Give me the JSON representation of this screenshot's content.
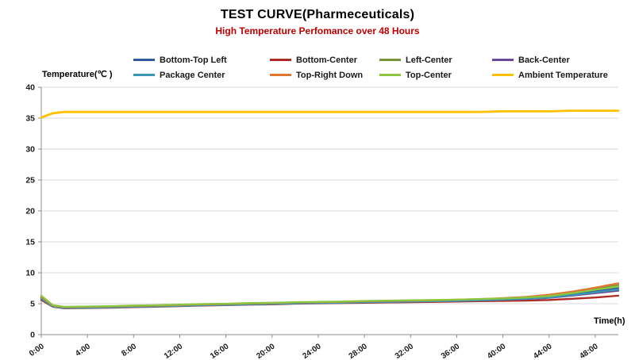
{
  "header": {
    "title": "TEST CURVE(Pharmeceuticals)",
    "subtitle": "High Temperature Perfomance over 48 Hours",
    "subtitle_color": "#c00000"
  },
  "axes": {
    "y_label": "Temperature(℃ )",
    "x_label": "Time(h)",
    "y_ticks": [
      0,
      5,
      10,
      15,
      20,
      25,
      30,
      35,
      40
    ],
    "x_tick_hours": [
      0,
      4,
      8,
      12,
      16,
      20,
      24,
      28,
      32,
      36,
      40,
      44,
      48
    ],
    "x_tick_labels": [
      "0:00",
      "4:00",
      "8:00",
      "12:00",
      "16:00",
      "20:00",
      "24:00",
      "28:00",
      "32:00",
      "36:00",
      "40:00",
      "44:00",
      "48:00"
    ]
  },
  "colors": {
    "grid": "#d9d9d9",
    "axis": "#8c8c8c",
    "tick": "#8c8c8c"
  },
  "chart_data": {
    "type": "line",
    "title": "TEST CURVE(Pharmeceuticals)",
    "subtitle": "High Temperature Perfomance over 48 Hours",
    "xlabel": "Time(h)",
    "ylabel": "Temperature(℃ )",
    "ylim": [
      0,
      40
    ],
    "xlim_hours": [
      0,
      50
    ],
    "grid": true,
    "legend_position": "top",
    "x_hours": [
      0,
      1,
      2,
      4,
      6,
      8,
      10,
      12,
      14,
      16,
      18,
      20,
      22,
      24,
      26,
      28,
      30,
      32,
      34,
      36,
      38,
      40,
      42,
      44,
      46,
      48,
      50
    ],
    "series": [
      {
        "name": "Bottom-Top Left",
        "color": "#2f5b9d",
        "values": [
          5.9,
          4.6,
          4.35,
          4.4,
          4.45,
          4.55,
          4.6,
          4.7,
          4.8,
          4.85,
          4.95,
          5.0,
          5.1,
          5.15,
          5.2,
          5.3,
          5.35,
          5.4,
          5.45,
          5.5,
          5.6,
          5.7,
          5.85,
          6.1,
          6.5,
          7.0,
          7.5
        ]
      },
      {
        "name": "Bottom-Center",
        "color": "#ae2b25",
        "values": [
          5.6,
          4.5,
          4.25,
          4.3,
          4.35,
          4.45,
          4.5,
          4.6,
          4.7,
          4.75,
          4.85,
          4.9,
          5.0,
          5.05,
          5.1,
          5.15,
          5.2,
          5.25,
          5.3,
          5.35,
          5.4,
          5.45,
          5.5,
          5.6,
          5.8,
          6.0,
          6.3
        ]
      },
      {
        "name": "Left-Center",
        "color": "#77933c",
        "values": [
          6.2,
          4.65,
          4.4,
          4.45,
          4.5,
          4.6,
          4.65,
          4.75,
          4.85,
          4.9,
          5.0,
          5.05,
          5.15,
          5.2,
          5.25,
          5.35,
          5.4,
          5.45,
          5.5,
          5.6,
          5.7,
          5.8,
          6.0,
          6.3,
          6.8,
          7.4,
          8.0
        ]
      },
      {
        "name": "Back-Center",
        "color": "#68499b",
        "values": [
          6.0,
          4.6,
          4.35,
          4.4,
          4.5,
          4.55,
          4.6,
          4.7,
          4.8,
          4.85,
          4.95,
          5.0,
          5.1,
          5.15,
          5.2,
          5.25,
          5.3,
          5.4,
          5.45,
          5.5,
          5.55,
          5.65,
          5.75,
          5.95,
          6.3,
          6.7,
          7.1
        ]
      },
      {
        "name": "Package Center",
        "color": "#3a96b4",
        "values": [
          5.8,
          4.55,
          4.3,
          4.35,
          4.4,
          4.5,
          4.55,
          4.65,
          4.75,
          4.8,
          4.9,
          4.95,
          5.05,
          5.1,
          5.15,
          5.25,
          5.3,
          5.35,
          5.4,
          5.45,
          5.55,
          5.65,
          5.8,
          6.0,
          6.4,
          6.85,
          7.3
        ]
      },
      {
        "name": "Top-Right Down",
        "color": "#e0762f",
        "values": [
          6.1,
          4.7,
          4.45,
          4.5,
          4.55,
          4.65,
          4.7,
          4.8,
          4.9,
          4.95,
          5.05,
          5.1,
          5.2,
          5.25,
          5.3,
          5.4,
          5.45,
          5.5,
          5.55,
          5.65,
          5.75,
          5.9,
          6.1,
          6.45,
          6.95,
          7.6,
          8.3
        ]
      },
      {
        "name": "Top-Center",
        "color": "#8cc63f",
        "values": [
          6.3,
          4.75,
          4.5,
          4.55,
          4.6,
          4.7,
          4.75,
          4.85,
          4.95,
          5.0,
          5.1,
          5.15,
          5.25,
          5.3,
          5.35,
          5.45,
          5.5,
          5.55,
          5.6,
          5.65,
          5.75,
          5.85,
          6.0,
          6.25,
          6.7,
          7.25,
          7.8
        ]
      },
      {
        "name": "Ambient Temperature",
        "color": "#ffc000",
        "values": [
          35.1,
          35.8,
          36,
          36,
          36,
          36,
          36,
          36,
          36,
          36,
          36,
          36,
          36,
          36,
          36,
          36,
          36,
          36,
          36,
          36,
          36,
          36.1,
          36.1,
          36.1,
          36.2,
          36.2,
          36.2
        ]
      }
    ]
  }
}
